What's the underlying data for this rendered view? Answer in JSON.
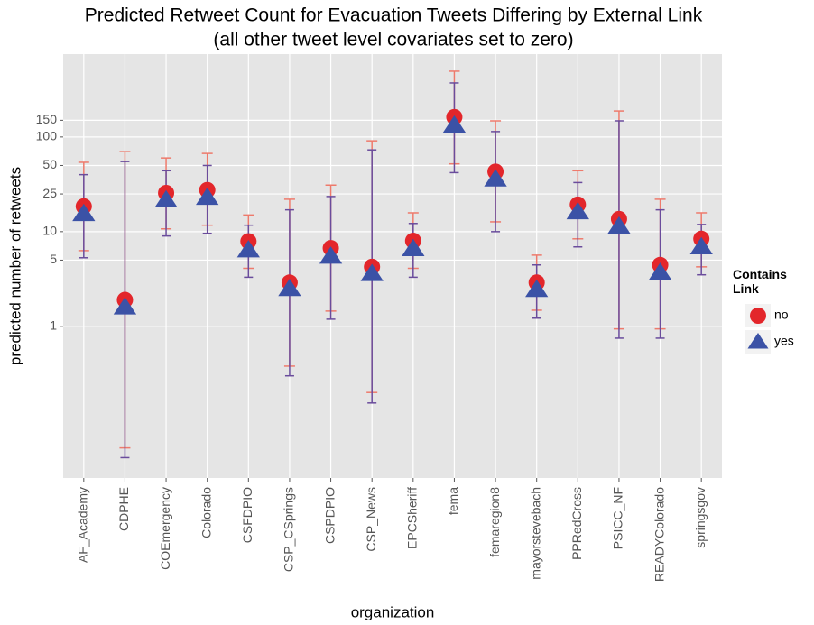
{
  "chart_data": {
    "type": "pointrange",
    "title": "Predicted Retweet Count for Evacuation Tweets Differing by External Link",
    "subtitle": "(all other tweet level covariates set to zero)",
    "x_label": "organization",
    "y_label": "predicted number of retweets",
    "legend_title": "Contains Link",
    "y_log": true,
    "grid": true,
    "categories": [
      "AF_Academy",
      "CDPHE",
      "COEmergency",
      "Colorado",
      "CSFDPIO",
      "CSP_CSprings",
      "CSPDPIO",
      "CSP_News",
      "EPCSheriff",
      "fema",
      "femaregion8",
      "mayorstevebach",
      "PPRedCross",
      "PSICC_NF",
      "READYColorado",
      "springsgov"
    ],
    "ylim": [
      0.025,
      750
    ],
    "yticks": [
      1,
      5,
      10,
      25,
      50,
      100,
      150
    ],
    "series": [
      {
        "name": "no",
        "marker": "circle",
        "color": "#e3262b",
        "error_color": "#ee7a6c",
        "values": [
          18.5,
          1.9,
          25.6,
          27.5,
          7.9,
          2.9,
          6.7,
          4.25,
          8.0,
          162,
          43,
          2.9,
          19.3,
          13.6,
          4.45,
          8.4
        ],
        "lower": [
          6.3,
          0.052,
          10.7,
          11.7,
          4.1,
          0.38,
          1.45,
          0.2,
          4.1,
          52,
          12.7,
          1.48,
          8.4,
          0.94,
          0.94,
          4.25
        ],
        "upper": [
          54,
          70,
          60,
          67,
          15,
          22,
          31,
          91,
          15.8,
          495,
          148,
          5.65,
          44,
          188,
          22,
          15.8
        ]
      },
      {
        "name": "yes",
        "marker": "triangle",
        "color": "#3b52a6",
        "error_color": "#6a4c9c",
        "values": [
          15.5,
          1.6,
          21.6,
          23,
          6.4,
          2.5,
          5.5,
          3.6,
          6.6,
          133,
          36,
          2.45,
          16.2,
          11.4,
          3.7,
          6.9
        ],
        "lower": [
          5.3,
          0.041,
          9,
          9.6,
          3.3,
          0.3,
          1.19,
          0.155,
          3.3,
          42,
          10,
          1.22,
          6.9,
          0.75,
          0.75,
          3.5
        ],
        "upper": [
          40,
          55,
          44,
          50,
          11.7,
          17,
          23.5,
          73,
          12.2,
          372,
          114,
          4.45,
          33,
          148,
          17,
          11.9
        ]
      }
    ]
  }
}
